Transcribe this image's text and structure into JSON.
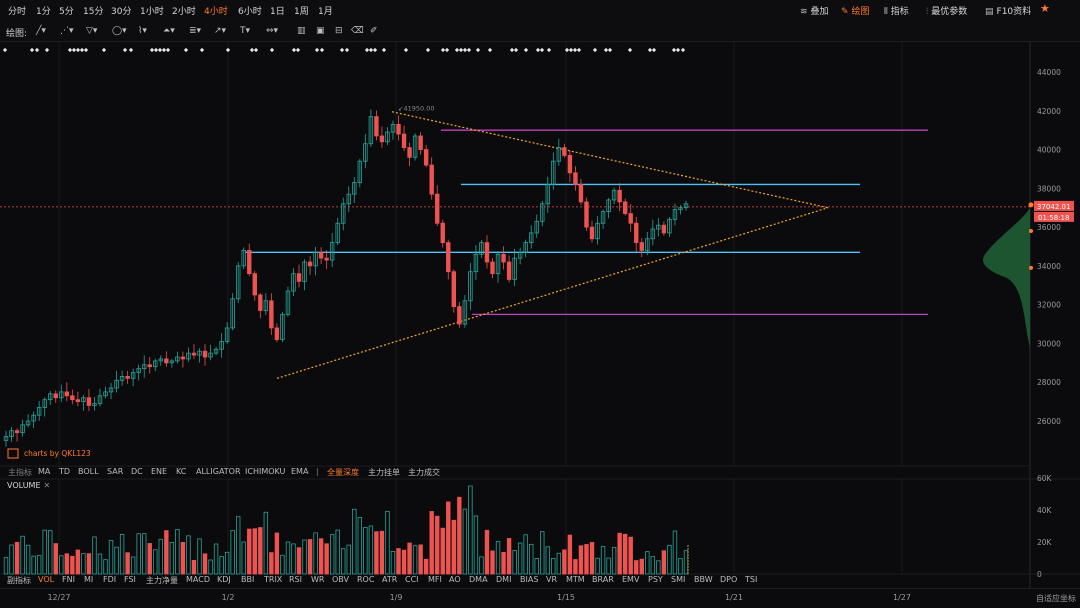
{
  "toolbar": {
    "intervals": [
      "分时",
      "1分",
      "5分",
      "15分",
      "30分",
      "1小时",
      "2小时",
      "4小时",
      "6小时",
      "1日",
      "1周",
      "1月"
    ],
    "active_interval": "4小时",
    "right_items": [
      {
        "label": "叠加",
        "icon": "layers-icon",
        "glyph": "≋"
      },
      {
        "label": "绘图",
        "icon": "draw-icon",
        "glyph": "✎",
        "active": true
      },
      {
        "label": "指标",
        "icon": "indicator-icon",
        "glyph": "⫴"
      },
      {
        "label": "最优参数",
        "icon": "params-icon",
        "glyph": "⫶"
      },
      {
        "label": "F10资料",
        "icon": "f10-icon",
        "glyph": "▤"
      }
    ],
    "star_icon": "star-icon"
  },
  "drawbar": {
    "label": "绘图:",
    "tools": [
      "line-tool-icon",
      "ray-tool-icon",
      "channel-tool-icon",
      "circle-tool-icon",
      "wave-tool-icon",
      "pattern-tool-icon",
      "fib-tool-icon",
      "arrow-tool-icon",
      "text-tool-icon",
      "measure-tool-icon",
      "price-tag-icon",
      "lock-icon",
      "trash-icon",
      "settings-icon",
      "eraser-icon"
    ]
  },
  "indicator_bar_main": {
    "label": "主指标",
    "items": [
      "MA",
      "TD",
      "BOLL",
      "SAR",
      "DC",
      "ENE",
      "KC",
      "ALLIGATOR",
      "ICHIMOKU",
      "EMA"
    ],
    "extra": [
      "全量深度",
      "主力挂单",
      "主力成交"
    ],
    "active_extra": "全量深度"
  },
  "indicator_bar_sub": {
    "label": "副指标",
    "items": [
      "VOL",
      "FNI",
      "MI",
      "FDI",
      "FSI",
      "主力净量",
      "MACD",
      "KDJ",
      "BBI",
      "TRIX",
      "RSI",
      "WR",
      "OBV",
      "ROC",
      "ATR",
      "CCI",
      "MFI",
      "AO",
      "DMA",
      "DMI",
      "BIAS",
      "VR",
      "MTM",
      "BRAR",
      "EMV",
      "PSY",
      "SMI",
      "BBW",
      "DPO",
      "TSI"
    ],
    "active": "VOL"
  },
  "volume_panel": {
    "label": "VOLUME",
    "close_icon": "close-icon"
  },
  "watermark": "charts by QKL123",
  "price_tags": {
    "current_price": "37042.01",
    "countdown": "01:58:18",
    "high_label": "41950.00"
  },
  "x_axis_labels": [
    "12/27",
    "1/2",
    "1/9",
    "1/15",
    "1/21",
    "1/27"
  ],
  "adaptive_label": "自适应坐标",
  "colors": {
    "up": "#26a69a",
    "down": "#ef5350",
    "bg": "#0b0b0d",
    "accent": "#ff7a2b",
    "cyan": "#4fc3f7",
    "magenta": "#c040c0",
    "triangle": "#f5a623"
  },
  "chart_data": {
    "type": "candlestick",
    "price_axis": {
      "ticks": [
        26000,
        28000,
        30000,
        32000,
        34000,
        36000,
        38000,
        40000,
        42000,
        44000
      ],
      "range": [
        24200,
        45000
      ]
    },
    "volume_axis": {
      "ticks": [
        "0",
        "20K",
        "40K",
        "60K"
      ],
      "range": [
        0,
        62000
      ]
    },
    "current_price": 37042.01,
    "horizontal_levels": [
      {
        "value": 41000,
        "color": "magenta"
      },
      {
        "value": 38200,
        "color": "cyan"
      },
      {
        "value": 34700,
        "color": "cyan"
      },
      {
        "value": 31500,
        "color": "magenta"
      }
    ],
    "triangle": {
      "top": [
        1,
        9,
        41950
      ],
      "bottom": [
        1,
        2,
        28200
      ],
      "apex": [
        1,
        19,
        37000
      ]
    },
    "candles_close": [
      25200,
      25500,
      25400,
      25800,
      26000,
      26300,
      26700,
      27100,
      27400,
      27200,
      27500,
      27300,
      27100,
      27000,
      27200,
      26800,
      26900,
      27300,
      27500,
      27700,
      28100,
      28300,
      28200,
      28500,
      28700,
      28900,
      28800,
      29100,
      29200,
      29000,
      29100,
      29300,
      29200,
      29500,
      29400,
      29600,
      29300,
      29500,
      29700,
      30100,
      30800,
      32300,
      34000,
      34800,
      33600,
      32500,
      31700,
      32200,
      30800,
      30200,
      31500,
      32700,
      33600,
      33200,
      34200,
      34000,
      34700,
      34400,
      34300,
      35200,
      36200,
      37200,
      37700,
      38300,
      39400,
      40300,
      41700,
      40700,
      40400,
      40900,
      41300,
      40800,
      40100,
      39600,
      40700,
      40000,
      39200,
      37700,
      36200,
      35200,
      33700,
      31900,
      31000,
      32200,
      33700,
      34600,
      35200,
      34200,
      33600,
      34600,
      34200,
      33300,
      34400,
      34700,
      35200,
      35700,
      36300,
      37200,
      38200,
      39400,
      40100,
      39700,
      38800,
      38200,
      37300,
      36000,
      35400,
      36200,
      36800,
      37400,
      37900,
      37300,
      36700,
      36200,
      35200,
      34800,
      35400,
      35900,
      36100,
      35700,
      36400,
      36900,
      37000,
      37200
    ]
  }
}
